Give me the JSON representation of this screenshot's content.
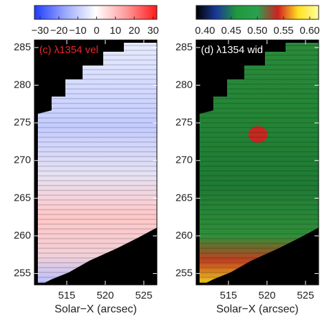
{
  "chart_data": [
    {
      "type": "heatmap",
      "label": "(c) λ1354 vel",
      "label_color": "#e8262b",
      "xlabel": "Solar−X (arcsec)",
      "xlim": [
        510.8,
        526.7
      ],
      "xticks": [
        515,
        520,
        525
      ],
      "ylim": [
        253.5,
        286
      ],
      "yticks": [
        255,
        260,
        265,
        270,
        275,
        280,
        285
      ],
      "colorbar": {
        "lim": [
          -33,
          32
        ],
        "colors": [
          "#1f3bff",
          "#9aa8ff",
          "#ffffff",
          "#ff9a9a",
          "#ff1a1a"
        ],
        "ticks": [
          {
            "value": -30,
            "label": "−30"
          },
          {
            "value": -20,
            "label": "−20"
          },
          {
            "value": -10,
            "label": "−10"
          },
          0,
          10,
          20,
          30
        ]
      }
    },
    {
      "type": "heatmap",
      "label": "(d) λ1354 wid",
      "label_color": "#ffffff",
      "xlabel": "Solar−X (arcsec)",
      "xlim": [
        510.8,
        526.7
      ],
      "xticks": [
        515,
        520,
        525
      ],
      "ylim": [
        253.5,
        286
      ],
      "yticks": [
        255,
        260,
        265,
        270,
        275,
        280,
        285
      ],
      "colorbar": {
        "lim": [
          0.383,
          0.617
        ],
        "colors": [
          "#000000",
          "#1a3a9a",
          "#1f9a3a",
          "#2aa050",
          "#d02020",
          "#ffe020",
          "#ffffa0"
        ],
        "ticks": [
          {
            "value": 0.4,
            "label": "0.40"
          },
          0.45,
          {
            "value": 0.5,
            "label": "0.50"
          },
          0.55,
          {
            "value": 0.6,
            "label": "0.60"
          }
        ]
      }
    }
  ]
}
